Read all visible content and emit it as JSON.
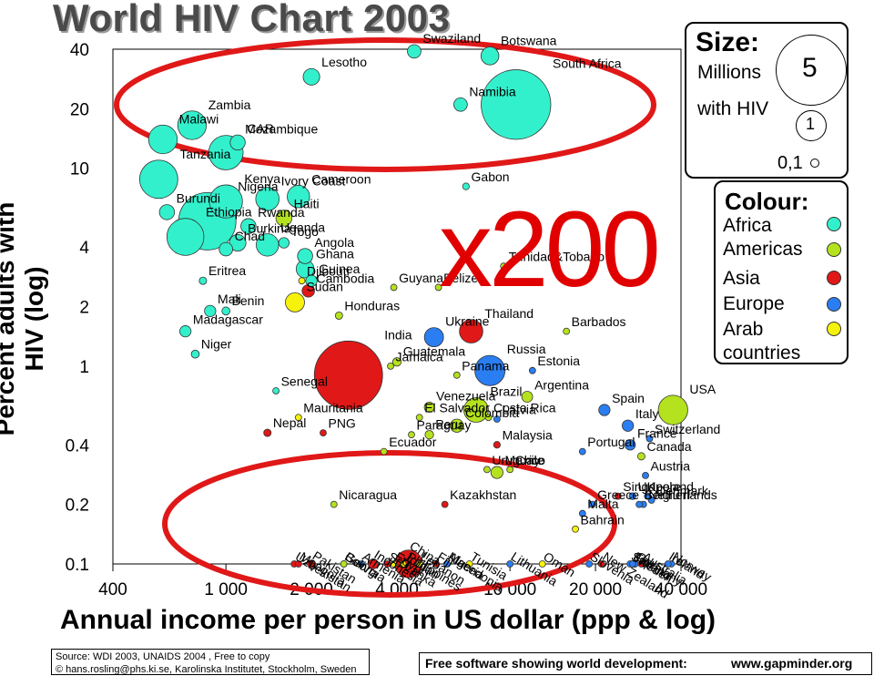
{
  "title": "World HIV Chart 2003",
  "colors": {
    "Africa": "#33f0cc",
    "Americas": "#b4e21e",
    "Asia": "#e01818",
    "Europe": "#2a7ef2",
    "Arab": "#f6f20c",
    "highlight_ellipse": "#e01818"
  },
  "overlay_text": "x200",
  "legend": {
    "size_title": "Size:",
    "size_unit_1": "Millions",
    "size_unit_2": "with HIV",
    "size_values": [
      "5",
      "1",
      "0,1"
    ],
    "colour_title": "Colour:",
    "colour_items": [
      "Africa",
      "Americas",
      "Asia",
      "Europe",
      "Arab",
      "countries"
    ]
  },
  "footer": {
    "source": "Source: WDI 2003, UNAIDS 2004 , Free to copy",
    "credit": "© hans.rosling@phs.ki.se, Karolinska Institutet, Stockholm, Sweden",
    "tagline": "Free software showing world development:",
    "site": "www.gapminder.org"
  },
  "chart_data": {
    "type": "scatter",
    "title": "World HIV Chart 2003",
    "xlabel": "Annual income per person in US dollar (ppp & log)",
    "ylabel": "Percent adults with HIV (log)",
    "x_scale": "log",
    "y_scale": "log",
    "xlim": [
      400,
      40000
    ],
    "ylim": [
      0.1,
      40
    ],
    "x_ticks": [
      400,
      1000,
      2000,
      4000,
      10000,
      20000,
      40000
    ],
    "x_tick_labels": [
      "400",
      "1 000",
      "2 000",
      "4 000",
      "10 000",
      "20 000",
      "40 000"
    ],
    "y_ticks": [
      40,
      20,
      10,
      4,
      2,
      1,
      0.4,
      0.2,
      0.1
    ],
    "y_tick_labels": [
      "40",
      "20",
      "10",
      "4",
      "2",
      "1",
      "0.4",
      "0.2",
      "0.1"
    ],
    "grid": false,
    "points": [
      {
        "label": "Malawi",
        "x": 600,
        "y": 14,
        "size": 0.9,
        "region": "Africa"
      },
      {
        "label": "Zambia",
        "x": 760,
        "y": 16.5,
        "size": 0.9,
        "region": "Africa"
      },
      {
        "label": "Mozambique",
        "x": 1000,
        "y": 12,
        "size": 1.3,
        "region": "Africa"
      },
      {
        "label": "Lesotho",
        "x": 2000,
        "y": 29,
        "size": 0.3,
        "region": "Africa"
      },
      {
        "label": "Swaziland",
        "x": 4600,
        "y": 39,
        "size": 0.2,
        "region": "Africa"
      },
      {
        "label": "Botswana",
        "x": 8500,
        "y": 37,
        "size": 0.35,
        "region": "Africa"
      },
      {
        "label": "Namibia",
        "x": 6700,
        "y": 21,
        "size": 0.2,
        "region": "Africa"
      },
      {
        "label": "South Africa",
        "x": 10500,
        "y": 21,
        "size": 5.3,
        "region": "Africa"
      },
      {
        "label": "Tanzania",
        "x": 580,
        "y": 8.8,
        "size": 1.6,
        "region": "Africa"
      },
      {
        "label": "Ivory Coast",
        "x": 1400,
        "y": 7,
        "size": 0.6,
        "region": "Africa"
      },
      {
        "label": "Cameroon",
        "x": 1800,
        "y": 7.2,
        "size": 0.55,
        "region": "Africa"
      },
      {
        "label": "Gabon",
        "x": 7000,
        "y": 8.1,
        "size": 0.05,
        "region": "Africa"
      },
      {
        "label": "Kenya",
        "x": 1000,
        "y": 6.8,
        "size": 1.2,
        "region": "Africa"
      },
      {
        "label": "Nigeria",
        "x": 860,
        "y": 5.4,
        "size": 3.6,
        "region": "Africa"
      },
      {
        "label": "CAR",
        "x": 1100,
        "y": 13.5,
        "size": 0.25,
        "region": "Africa"
      },
      {
        "label": "Rwanda",
        "x": 1200,
        "y": 5.1,
        "size": 0.25,
        "region": "Africa"
      },
      {
        "label": "Burundi",
        "x": 620,
        "y": 6,
        "size": 0.25,
        "region": "Africa"
      },
      {
        "label": "Burkina",
        "x": 1100,
        "y": 4.2,
        "size": 0.3,
        "region": "Africa"
      },
      {
        "label": "Uganda",
        "x": 1400,
        "y": 4.1,
        "size": 0.55,
        "region": "Africa"
      },
      {
        "label": "Haiti",
        "x": 1600,
        "y": 5.6,
        "size": 0.28,
        "region": "Americas"
      },
      {
        "label": "Ethiopia",
        "x": 720,
        "y": 4.5,
        "size": 1.5,
        "region": "Africa"
      },
      {
        "label": "Chad",
        "x": 1000,
        "y": 3.9,
        "size": 0.2,
        "region": "Africa"
      },
      {
        "label": "Togo",
        "x": 1600,
        "y": 4.2,
        "size": 0.12,
        "region": "Africa"
      },
      {
        "label": "Angola",
        "x": 1900,
        "y": 3.6,
        "size": 0.25,
        "region": "Africa"
      },
      {
        "label": "Ghana",
        "x": 1900,
        "y": 3.1,
        "size": 0.35,
        "region": "Africa"
      },
      {
        "label": "Djibouti",
        "x": 1850,
        "y": 2.7,
        "size": 0.01,
        "region": "Arab"
      },
      {
        "label": "Guinea",
        "x": 2000,
        "y": 2.7,
        "size": 0.14,
        "region": "Africa"
      },
      {
        "label": "Cambodia",
        "x": 1950,
        "y": 2.4,
        "size": 0.17,
        "region": "Asia"
      },
      {
        "label": "Eritrea",
        "x": 830,
        "y": 2.7,
        "size": 0.06,
        "region": "Africa"
      },
      {
        "label": "Mali",
        "x": 880,
        "y": 1.9,
        "size": 0.14,
        "region": "Africa"
      },
      {
        "label": "Benin",
        "x": 1000,
        "y": 1.9,
        "size": 0.07,
        "region": "Africa"
      },
      {
        "label": "Sudan",
        "x": 1750,
        "y": 2.1,
        "size": 0.4,
        "region": "Arab"
      },
      {
        "label": "Honduras",
        "x": 2500,
        "y": 1.8,
        "size": 0.06,
        "region": "Americas"
      },
      {
        "label": "Guyana",
        "x": 3900,
        "y": 2.5,
        "size": 0.01,
        "region": "Americas"
      },
      {
        "label": "Belize",
        "x": 5600,
        "y": 2.5,
        "size": 0.01,
        "region": "Americas"
      },
      {
        "label": "Trinidad&Tobago",
        "x": 9500,
        "y": 3.2,
        "size": 0.02,
        "region": "Americas"
      },
      {
        "label": "Thailand",
        "x": 7300,
        "y": 1.5,
        "size": 0.6,
        "region": "Asia"
      },
      {
        "label": "Madagascar",
        "x": 720,
        "y": 1.5,
        "size": 0.14,
        "region": "Africa"
      },
      {
        "label": "Niger",
        "x": 780,
        "y": 1.15,
        "size": 0.07,
        "region": "Africa"
      },
      {
        "label": "Ukraine",
        "x": 5400,
        "y": 1.4,
        "size": 0.4,
        "region": "Europe"
      },
      {
        "label": "Barbados",
        "x": 15800,
        "y": 1.5,
        "size": 0.005,
        "region": "Americas"
      },
      {
        "label": "Russia",
        "x": 8500,
        "y": 0.95,
        "size": 1.0,
        "region": "Europe"
      },
      {
        "label": "India",
        "x": 2700,
        "y": 0.9,
        "size": 5.1,
        "region": "Asia"
      },
      {
        "label": "Guatemala",
        "x": 4000,
        "y": 1.05,
        "size": 0.08,
        "region": "Americas"
      },
      {
        "label": "Jamaica",
        "x": 3800,
        "y": 1.0,
        "size": 0.02,
        "region": "Americas"
      },
      {
        "label": "Panama",
        "x": 6500,
        "y": 0.9,
        "size": 0.02,
        "region": "Americas"
      },
      {
        "label": "Estonia",
        "x": 12000,
        "y": 0.95,
        "size": 0.01,
        "region": "Europe"
      },
      {
        "label": "Senegal",
        "x": 1500,
        "y": 0.75,
        "size": 0.04,
        "region": "Africa"
      },
      {
        "label": "Venezuela",
        "x": 5200,
        "y": 0.62,
        "size": 0.11,
        "region": "Americas"
      },
      {
        "label": "Argentina",
        "x": 11500,
        "y": 0.7,
        "size": 0.13,
        "region": "Americas"
      },
      {
        "label": "Spain",
        "x": 21500,
        "y": 0.6,
        "size": 0.14,
        "region": "Europe"
      },
      {
        "label": "Brazil",
        "x": 7600,
        "y": 0.6,
        "size": 0.66,
        "region": "Americas"
      },
      {
        "label": "Costa Rica",
        "x": 8400,
        "y": 0.55,
        "size": 0.01,
        "region": "Americas"
      },
      {
        "label": "El Salvador",
        "x": 4800,
        "y": 0.55,
        "size": 0.03,
        "region": "Americas"
      },
      {
        "label": "Mauritania",
        "x": 1800,
        "y": 0.55,
        "size": 0.01,
        "region": "Arab"
      },
      {
        "label": "Colombia",
        "x": 6500,
        "y": 0.5,
        "size": 0.19,
        "region": "Americas"
      },
      {
        "label": "Latvia",
        "x": 9000,
        "y": 0.54,
        "size": 0.01,
        "region": "Europe"
      },
      {
        "label": "USA",
        "x": 37500,
        "y": 0.6,
        "size": 0.95,
        "region": "Americas"
      },
      {
        "label": "Italy",
        "x": 26000,
        "y": 0.5,
        "size": 0.14,
        "region": "Europe"
      },
      {
        "label": "Paraguay",
        "x": 4500,
        "y": 0.45,
        "size": 0.02,
        "region": "Americas"
      },
      {
        "label": "PNG",
        "x": 2200,
        "y": 0.46,
        "size": 0.02,
        "region": "Asia"
      },
      {
        "label": "Nepal",
        "x": 1400,
        "y": 0.46,
        "size": 0.06,
        "region": "Asia"
      },
      {
        "label": "Peru",
        "x": 5200,
        "y": 0.45,
        "size": 0.08,
        "region": "Americas"
      },
      {
        "label": "Malaysia",
        "x": 9000,
        "y": 0.4,
        "size": 0.05,
        "region": "Asia"
      },
      {
        "label": "France",
        "x": 26500,
        "y": 0.4,
        "size": 0.12,
        "region": "Europe"
      },
      {
        "label": "Switzerland",
        "x": 31000,
        "y": 0.43,
        "size": 0.01,
        "region": "Europe"
      },
      {
        "label": "Ecuador",
        "x": 3600,
        "y": 0.37,
        "size": 0.02,
        "region": "Americas"
      },
      {
        "label": "Canada",
        "x": 29000,
        "y": 0.35,
        "size": 0.06,
        "region": "Americas"
      },
      {
        "label": "Portugal",
        "x": 18000,
        "y": 0.37,
        "size": 0.02,
        "region": "Europe"
      },
      {
        "label": "Chile",
        "x": 10000,
        "y": 0.3,
        "size": 0.03,
        "region": "Americas"
      },
      {
        "label": "Uruguay",
        "x": 8300,
        "y": 0.3,
        "size": 0.01,
        "region": "Americas"
      },
      {
        "label": "Mexico",
        "x": 9000,
        "y": 0.29,
        "size": 0.16,
        "region": "Americas"
      },
      {
        "label": "Austria",
        "x": 30000,
        "y": 0.28,
        "size": 0.01,
        "region": "Europe"
      },
      {
        "label": "Singapore",
        "x": 24000,
        "y": 0.22,
        "size": 0.005,
        "region": "Asia"
      },
      {
        "label": "UK",
        "x": 27000,
        "y": 0.22,
        "size": 0.05,
        "region": "Europe"
      },
      {
        "label": "Iceland",
        "x": 30500,
        "y": 0.22,
        "size": 0.005,
        "region": "Europe"
      },
      {
        "label": "Greece",
        "x": 19500,
        "y": 0.2,
        "size": 0.01,
        "region": "Europe"
      },
      {
        "label": "Denmark",
        "x": 31500,
        "y": 0.21,
        "size": 0.005,
        "region": "Europe"
      },
      {
        "label": "Belgium",
        "x": 28500,
        "y": 0.2,
        "size": 0.01,
        "region": "Europe"
      },
      {
        "label": "Netherlands",
        "x": 29500,
        "y": 0.2,
        "size": 0.02,
        "region": "Europe"
      },
      {
        "label": "Malta",
        "x": 18000,
        "y": 0.18,
        "size": 0.005,
        "region": "Europe"
      },
      {
        "label": "Bahrain",
        "x": 17000,
        "y": 0.15,
        "size": 0.005,
        "region": "Arab"
      },
      {
        "label": "Nicaragua",
        "x": 2400,
        "y": 0.2,
        "size": 0.005,
        "region": "Americas"
      },
      {
        "label": "Oman",
        "x": 13000,
        "y": 0.1,
        "size": 0.005,
        "region": "Arab"
      },
      {
        "label": "Norway",
        "x": 37000,
        "y": 0.1,
        "size": 0.005,
        "region": "Europe"
      },
      {
        "label": "Tunisia",
        "x": 7200,
        "y": 0.1,
        "size": 0.005,
        "region": "Arab"
      },
      {
        "label": "Slovenia",
        "x": 19000,
        "y": 0.1,
        "size": 0.005,
        "region": "Europe"
      },
      {
        "label": "New Zealand",
        "x": 21000,
        "y": 0.1,
        "size": 0.005,
        "region": "Asia"
      },
      {
        "label": "Sweden",
        "x": 26500,
        "y": 0.1,
        "size": 0.005,
        "region": "Europe"
      },
      {
        "label": "Finland",
        "x": 27000,
        "y": 0.1,
        "size": 0.005,
        "region": "Europe"
      },
      {
        "label": "Germany",
        "x": 27500,
        "y": 0.1,
        "size": 0.05,
        "region": "Europe"
      },
      {
        "label": "Japan",
        "x": 27000,
        "y": 0.1,
        "size": 0.02,
        "region": "Asia"
      },
      {
        "label": "Australia",
        "x": 29000,
        "y": 0.1,
        "size": 0.01,
        "region": "Asia"
      },
      {
        "label": "Ireland",
        "x": 36000,
        "y": 0.1,
        "size": 0.005,
        "region": "Europe"
      },
      {
        "label": "Uzbekistan",
        "x": 1740,
        "y": 0.1,
        "size": 0.01,
        "region": "Asia"
      },
      {
        "label": "Mongolia",
        "x": 1800,
        "y": 0.1,
        "size": 0.005,
        "region": "Asia"
      },
      {
        "label": "Pakistan",
        "x": 2000,
        "y": 0.1,
        "size": 0.07,
        "region": "Asia"
      },
      {
        "label": "Georgia",
        "x": 2600,
        "y": 0.1,
        "size": 0.005,
        "region": "Europe"
      },
      {
        "label": "Bolivia",
        "x": 2600,
        "y": 0.1,
        "size": 0.005,
        "region": "Americas"
      },
      {
        "label": "Indonesia",
        "x": 3300,
        "y": 0.1,
        "size": 0.11,
        "region": "Asia"
      },
      {
        "label": "Sri Lanka",
        "x": 3700,
        "y": 0.1,
        "size": 0.005,
        "region": "Asia"
      },
      {
        "label": "Philippines",
        "x": 4300,
        "y": 0.1,
        "size": 0.01,
        "region": "Asia"
      },
      {
        "label": "China",
        "x": 4400,
        "y": 0.1,
        "size": 0.84,
        "region": "Asia"
      },
      {
        "label": "Kazakhstan",
        "x": 5900,
        "y": 0.2,
        "size": 0.015,
        "region": "Asia"
      },
      {
        "label": "Macedonia",
        "x": 6000,
        "y": 0.1,
        "size": 0.005,
        "region": "Europe"
      },
      {
        "label": "Fiji",
        "x": 5500,
        "y": 0.1,
        "size": 0.005,
        "region": "Asia"
      },
      {
        "label": "Lithuania",
        "x": 10000,
        "y": 0.1,
        "size": 0.005,
        "region": "Europe"
      },
      {
        "label": "Armenia",
        "x": 3000,
        "y": 0.1,
        "size": 0.005,
        "region": "Europe"
      },
      {
        "label": "Egypt",
        "x": 3900,
        "y": 0.1,
        "size": 0.01,
        "region": "Arab"
      },
      {
        "label": "Jordan",
        "x": 4200,
        "y": 0.1,
        "size": 0.005,
        "region": "Arab"
      },
      {
        "label": "Lebanon",
        "x": 4800,
        "y": 0.1,
        "size": 0.005,
        "region": "Arab"
      },
      {
        "label": "Algeria",
        "x": 6000,
        "y": 0.1,
        "size": 0.01,
        "region": "Arab"
      }
    ]
  }
}
